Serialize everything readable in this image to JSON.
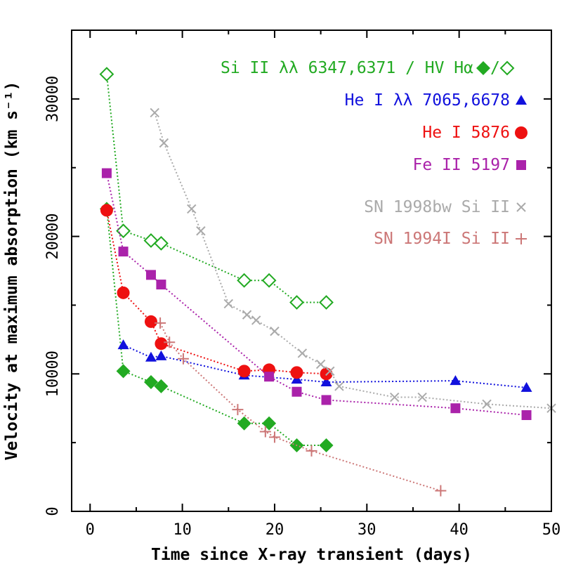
{
  "chart_data": {
    "type": "scatter",
    "xlabel": "Time since X-ray transient (days)",
    "ylabel": "Velocity at maximum absorption (km s⁻¹)",
    "xlim": [
      -2,
      50
    ],
    "ylim": [
      0,
      35000
    ],
    "xticks": [
      0,
      10,
      20,
      30,
      40,
      50
    ],
    "yticks": [
      0,
      10000,
      20000,
      30000
    ],
    "grid": false,
    "legend_position": "top-right",
    "series": [
      {
        "name": "Si II λλ 6347,6371 / HV Hα",
        "marker": "diamond-filled",
        "color": "#22aa22",
        "x": [
          1.8,
          3.6,
          6.6,
          7.7,
          16.7,
          19.4,
          22.4,
          25.6
        ],
        "y": [
          22000,
          10200,
          9400,
          9100,
          6400,
          6400,
          4800,
          4800
        ]
      },
      {
        "name": "HV Hα",
        "marker": "diamond-open",
        "color": "#22aa22",
        "x": [
          1.8,
          3.6,
          6.6,
          7.7,
          16.7,
          19.4,
          22.4,
          25.6
        ],
        "y": [
          31800,
          20400,
          19700,
          19500,
          16800,
          16800,
          15200,
          15200
        ]
      },
      {
        "name": "He I λλ 7065,6678",
        "marker": "triangle",
        "color": "#1111dd",
        "x": [
          3.6,
          6.6,
          7.7,
          16.7,
          22.4,
          25.6,
          39.6,
          47.3
        ],
        "y": [
          12100,
          11200,
          11300,
          9900,
          9600,
          9400,
          9500,
          9000
        ]
      },
      {
        "name": "He I 5876",
        "marker": "circle",
        "color": "#ee1111",
        "x": [
          1.8,
          3.6,
          6.6,
          7.7,
          16.7,
          19.4,
          22.4,
          25.6
        ],
        "y": [
          21900,
          15900,
          13800,
          12200,
          10200,
          10300,
          10100,
          10000
        ]
      },
      {
        "name": "Fe II 5197",
        "marker": "square",
        "color": "#aa22aa",
        "x": [
          1.8,
          3.6,
          6.6,
          7.7,
          19.4,
          22.4,
          25.6,
          39.6,
          47.3
        ],
        "y": [
          24600,
          18900,
          17200,
          16500,
          9800,
          8700,
          8100,
          7500,
          7000
        ]
      },
      {
        "name": "SN 1998bw Si II",
        "marker": "cross",
        "color": "#aaaaaa",
        "x": [
          7.0,
          8.0,
          11.0,
          12.0,
          15.0,
          17.0,
          18.0,
          20.0,
          23.0,
          25.0,
          26.0,
          27.0,
          33.0,
          36.0,
          43.0,
          50.0
        ],
        "y": [
          29000,
          26800,
          22000,
          20400,
          15100,
          14300,
          13900,
          13100,
          11500,
          10700,
          10200,
          9100,
          8300,
          8300,
          7800,
          7500
        ]
      },
      {
        "name": "SN 1994I Si II",
        "marker": "plus",
        "color": "#cc7777",
        "x": [
          7.6,
          8.6,
          10.1,
          16.0,
          19.0,
          20.0,
          24.0,
          38.0
        ],
        "y": [
          13700,
          12300,
          11100,
          7400,
          5800,
          5400,
          4400,
          1500
        ]
      }
    ],
    "legend": [
      {
        "label": "Si II λλ 6347,6371 / HV Hα",
        "markers": [
          "diamond-filled",
          "diamond-open"
        ],
        "separator": "/",
        "color": "#22aa22"
      },
      {
        "label": "He I λλ 7065,6678",
        "markers": [
          "triangle"
        ],
        "color": "#1111dd"
      },
      {
        "label": "He I 5876",
        "markers": [
          "circle"
        ],
        "color": "#ee1111"
      },
      {
        "label": "Fe II 5197",
        "markers": [
          "square"
        ],
        "color": "#aa22aa"
      },
      {
        "label": "SN 1998bw Si II",
        "markers": [
          "cross"
        ],
        "color": "#aaaaaa"
      },
      {
        "label": "SN 1994I Si II",
        "markers": [
          "plus"
        ],
        "color": "#cc7777"
      }
    ]
  }
}
